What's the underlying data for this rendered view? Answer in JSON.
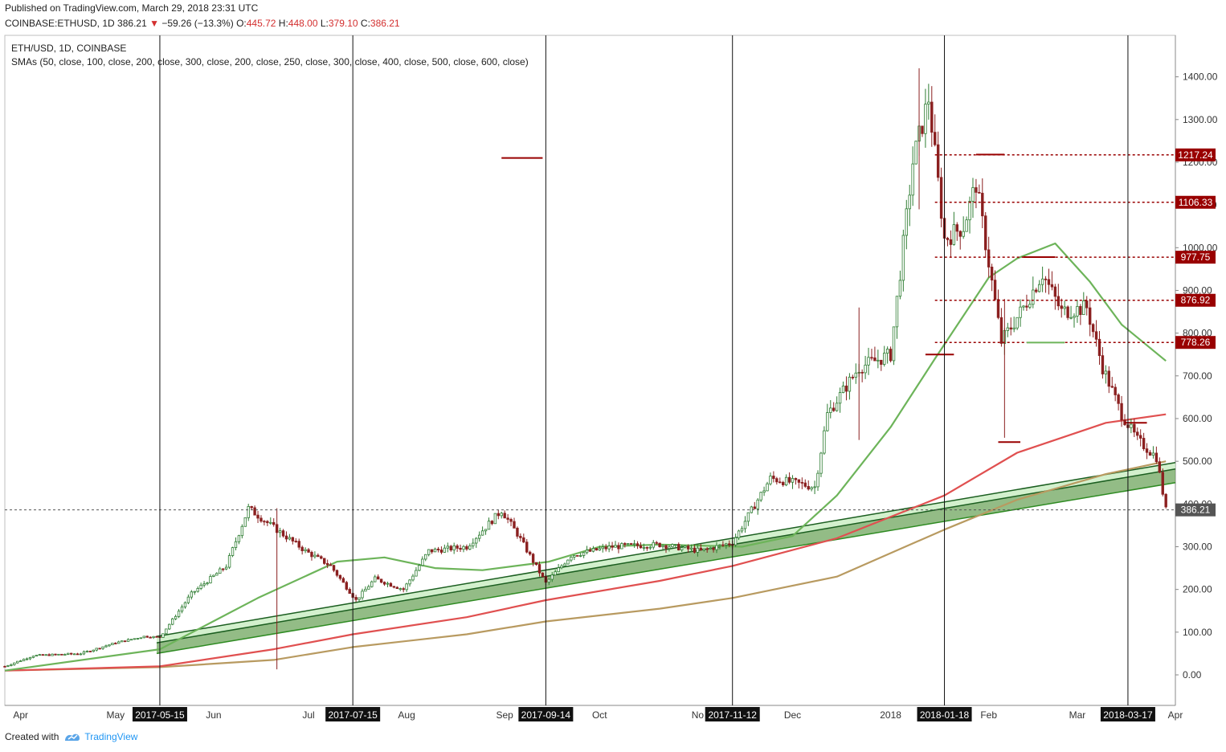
{
  "header": {
    "published": "Published on TradingView.com, March 29, 2018 23:31 UTC",
    "symbol": "COINBASE:ETHUSD, 1D",
    "last": "386.21",
    "change": "−59.26 (−13.3%)",
    "o_label": "O:",
    "o_value": "445.72",
    "h_label": "H:",
    "h_value": "448.00",
    "l_label": "L:",
    "l_value": "379.10",
    "c_label": "C:",
    "c_value": "386.21"
  },
  "legend": {
    "line1": "ETH/USD, 1D, COINBASE",
    "line2": "SMAs (50, close, 100, close, 200, close, 300, close, 200, close, 250, close, 300, close, 400, close, 500, close, 600, close)"
  },
  "footer": {
    "created_with": "Created with",
    "brand": "TradingView"
  },
  "colors": {
    "sma50": "#6db45a",
    "sma200": "#e05050",
    "sma300": "#b89a60",
    "up": "#2e7d32",
    "down": "#8b2020",
    "level": "#990000",
    "channel_fill": "#6fa65e",
    "channel_light": "#c8ecc0",
    "channel_edge": "#1b5e20"
  },
  "chart_data": {
    "type": "candlestick",
    "y_ticks": [
      "1400.00",
      "1300.00",
      "1200.00",
      "1100.00",
      "1000.00",
      "900.00",
      "800.00",
      "700.00",
      "600.00",
      "500.00",
      "400.00",
      "300.00",
      "200.00",
      "100.00",
      "0.00"
    ],
    "x_month_labels": [
      "Apr",
      "May",
      "Jun",
      "Jul",
      "Aug",
      "Sep",
      "Oct",
      "No",
      "Dec",
      "2018",
      "Feb",
      "Mar",
      "Apr"
    ],
    "marked_dates": [
      "2017-05-15",
      "2017-07-15",
      "2017-09-14",
      "2017-11-12",
      "2018-01-18",
      "2018-03-17"
    ],
    "price_levels": [
      {
        "label": "1217.24",
        "value": 1217.24
      },
      {
        "label": "1106.33",
        "value": 1106.33
      },
      {
        "label": "977.75",
        "value": 977.75
      },
      {
        "label": "876.92",
        "value": 876.92
      },
      {
        "label": "778.26",
        "value": 778.26
      }
    ],
    "last_price": {
      "label": "386.21",
      "value": 386.21
    },
    "close_path": [
      [
        "2017-03-27",
        20
      ],
      [
        "2017-04-05",
        45
      ],
      [
        "2017-04-20",
        50
      ],
      [
        "2017-05-01",
        75
      ],
      [
        "2017-05-10",
        90
      ],
      [
        "2017-05-15",
        88
      ],
      [
        "2017-05-25",
        190
      ],
      [
        "2017-06-05",
        255
      ],
      [
        "2017-06-12",
        390
      ],
      [
        "2017-06-20",
        345
      ],
      [
        "2017-06-30",
        290
      ],
      [
        "2017-07-08",
        255
      ],
      [
        "2017-07-16",
        175
      ],
      [
        "2017-07-22",
        225
      ],
      [
        "2017-07-31",
        200
      ],
      [
        "2017-08-08",
        290
      ],
      [
        "2017-08-20",
        300
      ],
      [
        "2017-08-31",
        385
      ],
      [
        "2017-09-05",
        330
      ],
      [
        "2017-09-14",
        215
      ],
      [
        "2017-09-22",
        280
      ],
      [
        "2017-10-05",
        300
      ],
      [
        "2017-10-20",
        305
      ],
      [
        "2017-11-02",
        290
      ],
      [
        "2017-11-12",
        310
      ],
      [
        "2017-11-24",
        460
      ],
      [
        "2017-12-08",
        440
      ],
      [
        "2017-12-12",
        610
      ],
      [
        "2017-12-22",
        720
      ],
      [
        "2018-01-01",
        750
      ],
      [
        "2018-01-08",
        1200
      ],
      [
        "2018-01-13",
        1350
      ],
      [
        "2018-01-18",
        1020
      ],
      [
        "2018-01-24",
        1050
      ],
      [
        "2018-01-28",
        1150
      ],
      [
        "2018-02-05",
        780
      ],
      [
        "2018-02-12",
        860
      ],
      [
        "2018-02-18",
        940
      ],
      [
        "2018-02-24",
        850
      ],
      [
        "2018-03-04",
        860
      ],
      [
        "2018-03-09",
        720
      ],
      [
        "2018-03-15",
        610
      ],
      [
        "2018-03-20",
        550
      ],
      [
        "2018-03-26",
        510
      ],
      [
        "2018-03-29",
        386
      ]
    ],
    "sma50": [
      [
        "2017-03-27",
        10
      ],
      [
        "2017-05-15",
        60
      ],
      [
        "2017-06-15",
        180
      ],
      [
        "2017-07-10",
        265
      ],
      [
        "2017-07-25",
        275
      ],
      [
        "2017-08-10",
        250
      ],
      [
        "2017-08-25",
        245
      ],
      [
        "2017-09-15",
        265
      ],
      [
        "2017-10-01",
        300
      ],
      [
        "2017-10-20",
        305
      ],
      [
        "2017-11-15",
        300
      ],
      [
        "2017-12-01",
        325
      ],
      [
        "2017-12-15",
        420
      ],
      [
        "2018-01-01",
        580
      ],
      [
        "2018-01-15",
        740
      ],
      [
        "2018-02-01",
        930
      ],
      [
        "2018-02-10",
        975
      ],
      [
        "2018-02-22",
        1010
      ],
      [
        "2018-03-05",
        920
      ],
      [
        "2018-03-15",
        820
      ],
      [
        "2018-03-29",
        735
      ]
    ],
    "sma200": [
      [
        "2017-03-27",
        10
      ],
      [
        "2017-05-15",
        20
      ],
      [
        "2017-06-20",
        60
      ],
      [
        "2017-07-15",
        95
      ],
      [
        "2017-08-20",
        135
      ],
      [
        "2017-09-14",
        175
      ],
      [
        "2017-10-20",
        220
      ],
      [
        "2017-11-12",
        255
      ],
      [
        "2017-12-15",
        320
      ],
      [
        "2018-01-18",
        420
      ],
      [
        "2018-02-10",
        520
      ],
      [
        "2018-03-10",
        590
      ],
      [
        "2018-03-29",
        610
      ]
    ],
    "sma300": [
      [
        "2017-03-27",
        10
      ],
      [
        "2017-05-15",
        18
      ],
      [
        "2017-06-20",
        35
      ],
      [
        "2017-07-15",
        65
      ],
      [
        "2017-08-20",
        95
      ],
      [
        "2017-09-14",
        125
      ],
      [
        "2017-10-20",
        155
      ],
      [
        "2017-11-12",
        180
      ],
      [
        "2017-12-15",
        230
      ],
      [
        "2018-01-18",
        340
      ],
      [
        "2018-02-10",
        410
      ],
      [
        "2018-03-10",
        470
      ],
      [
        "2018-03-29",
        500
      ]
    ]
  }
}
